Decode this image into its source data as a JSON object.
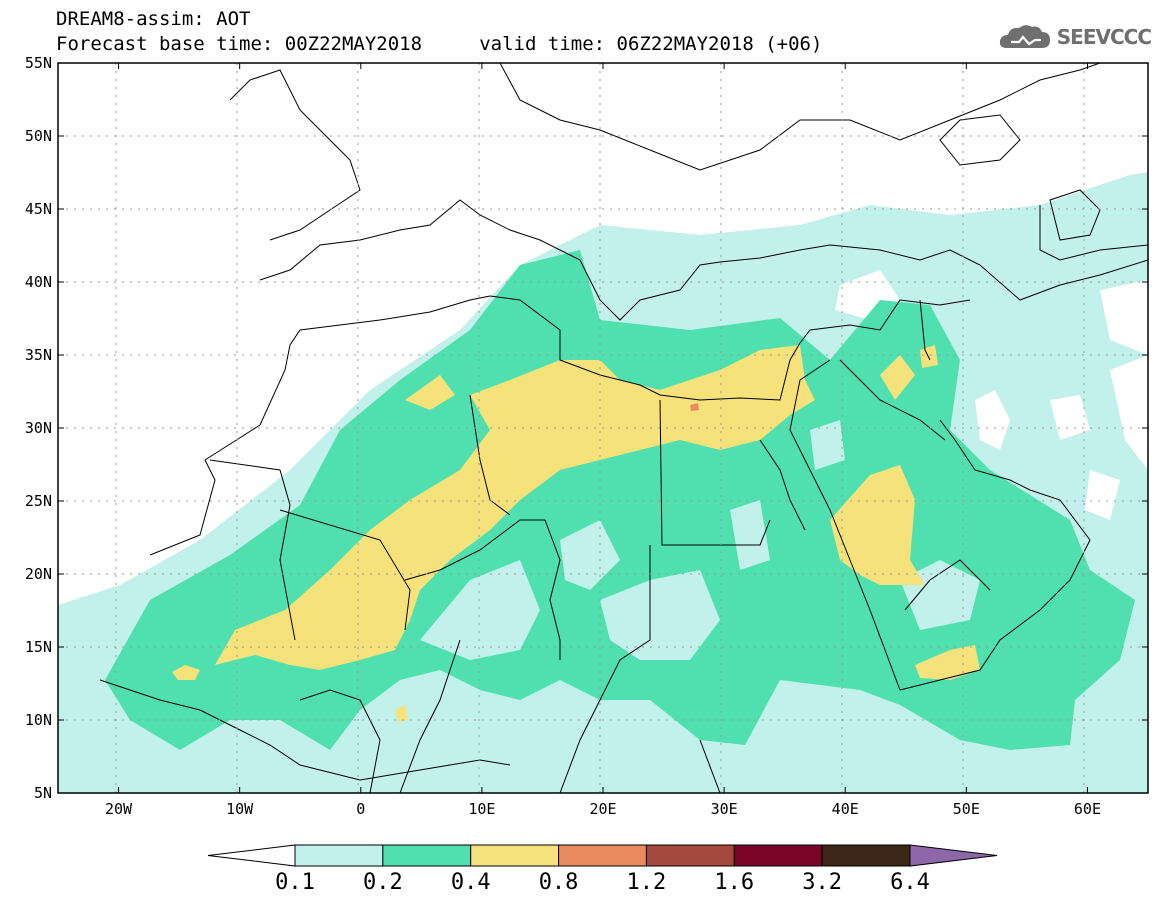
{
  "header": {
    "title_line1": "DREAM8-assim: AOT",
    "title_line2": "Forecast base time: 00Z22MAY2018     valid time: 06Z22MAY2018 (+06)",
    "logo_text": "SEEVCCC"
  },
  "map": {
    "lon_range": [
      -25,
      65
    ],
    "lat_range": [
      5,
      55
    ],
    "lat_ticks": [
      "5N",
      "10N",
      "15N",
      "20N",
      "25N",
      "30N",
      "35N",
      "40N",
      "45N",
      "50N",
      "55N"
    ],
    "lon_ticks": [
      "20W",
      "10W",
      "0",
      "10E",
      "20E",
      "30E",
      "40E",
      "50E",
      "60E"
    ],
    "gridlines": "dotted"
  },
  "legend": {
    "labels": [
      "0.1",
      "0.2",
      "0.4",
      "0.8",
      "1.2",
      "1.6",
      "3.2",
      "6.4"
    ],
    "colors": [
      "#ffffff",
      "#c2f0eb",
      "#50e0b0",
      "#f5e27a",
      "#e98b5f",
      "#a4483d",
      "#7a0429",
      "#3b2618",
      "#8d67a8"
    ]
  },
  "colors": {
    "class1": "#c2f0eb",
    "class2": "#50e0b0",
    "class3": "#f5e27a",
    "class4": "#e98b5f"
  }
}
